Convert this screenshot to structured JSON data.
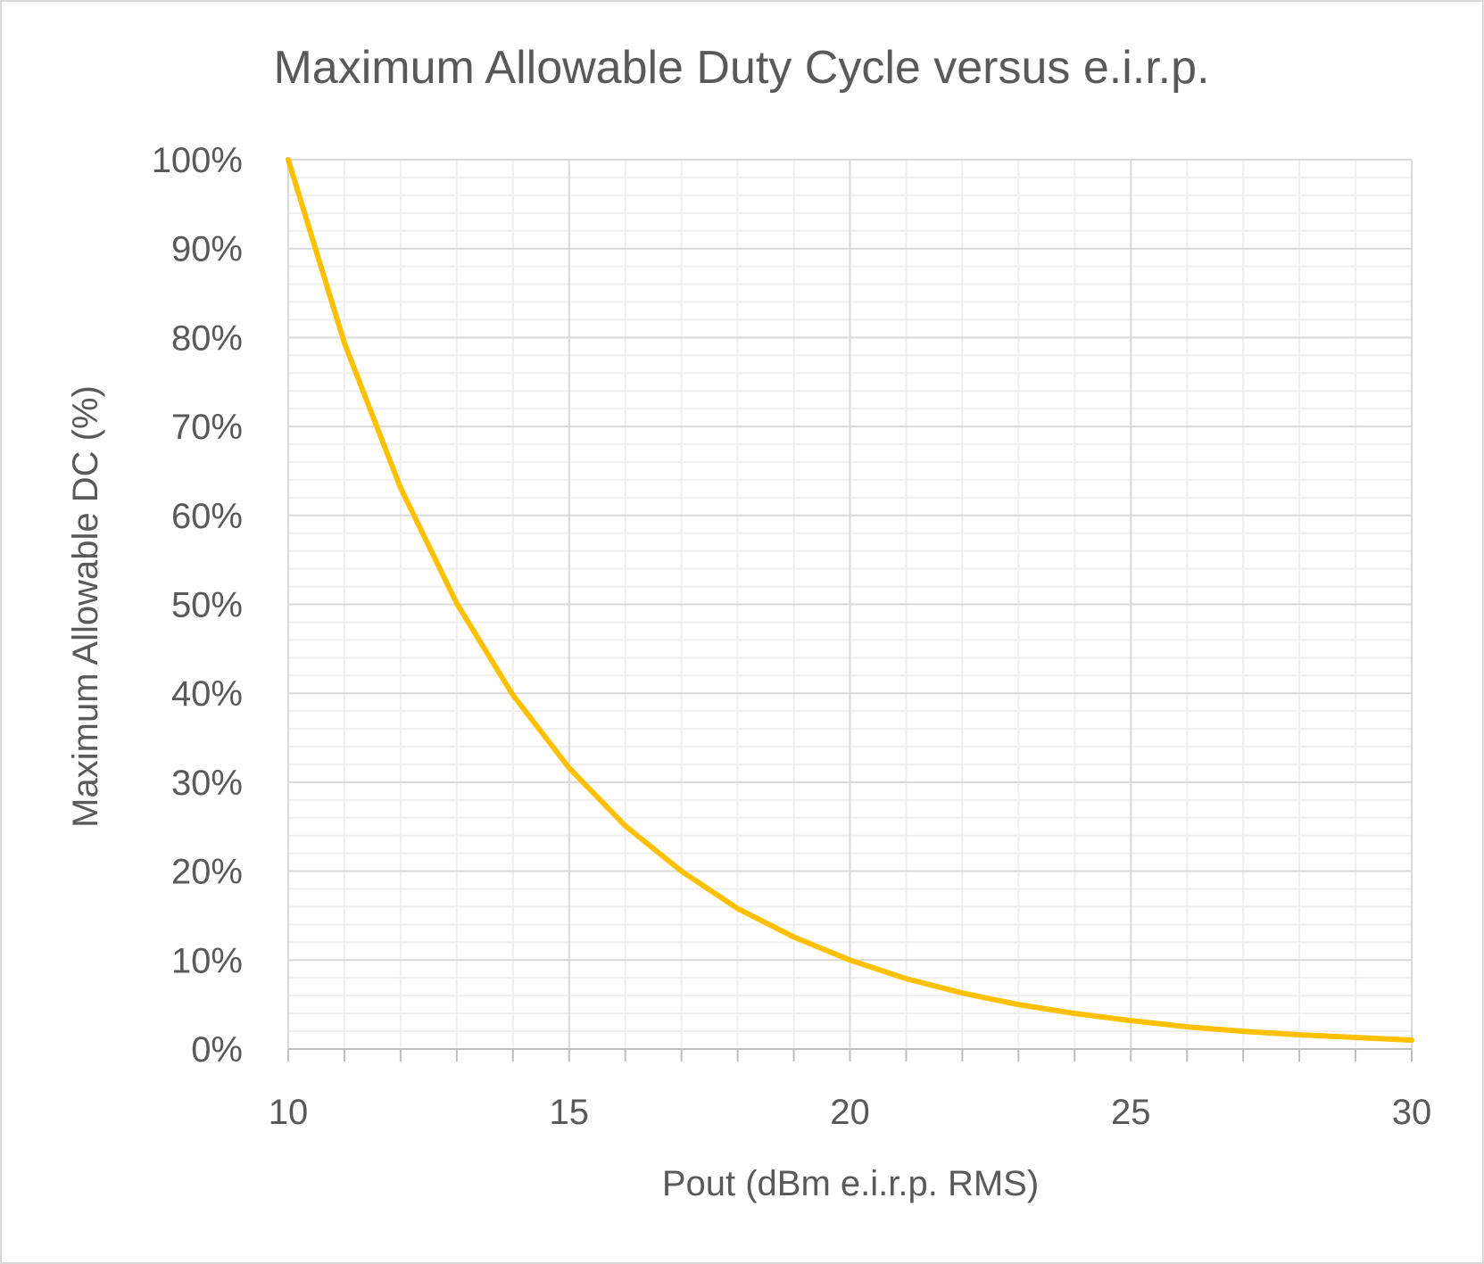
{
  "chart_data": {
    "type": "line",
    "title": "Maximum Allowable Duty Cycle versus e.i.r.p.",
    "xlabel": "Pout (dBm e.i.r.p. RMS)",
    "ylabel": "Maximum Allowable DC (%)",
    "xlim": [
      10,
      30
    ],
    "ylim": [
      0,
      100
    ],
    "x_ticks": [
      10,
      15,
      20,
      25,
      30
    ],
    "y_ticks": [
      0,
      10,
      20,
      30,
      40,
      50,
      60,
      70,
      80,
      90,
      100
    ],
    "x_tick_labels": [
      "10",
      "15",
      "20",
      "25",
      "30"
    ],
    "y_tick_labels": [
      "0%",
      "10%",
      "20%",
      "30%",
      "40%",
      "50%",
      "60%",
      "70%",
      "80%",
      "90%",
      "100%"
    ],
    "grid": true,
    "legend": "none",
    "series": [
      {
        "color": "#ffc000",
        "x": [
          10,
          11,
          12,
          13,
          14,
          15,
          16,
          17,
          18,
          19,
          20,
          21,
          22,
          23,
          24,
          25,
          26,
          27,
          28,
          29,
          30
        ],
        "values": [
          100,
          79.4,
          63.1,
          50.1,
          39.8,
          31.6,
          25.1,
          20.0,
          15.8,
          12.6,
          10.0,
          7.9,
          6.3,
          5.0,
          4.0,
          3.2,
          2.5,
          2.0,
          1.6,
          1.3,
          1.0
        ]
      }
    ]
  }
}
